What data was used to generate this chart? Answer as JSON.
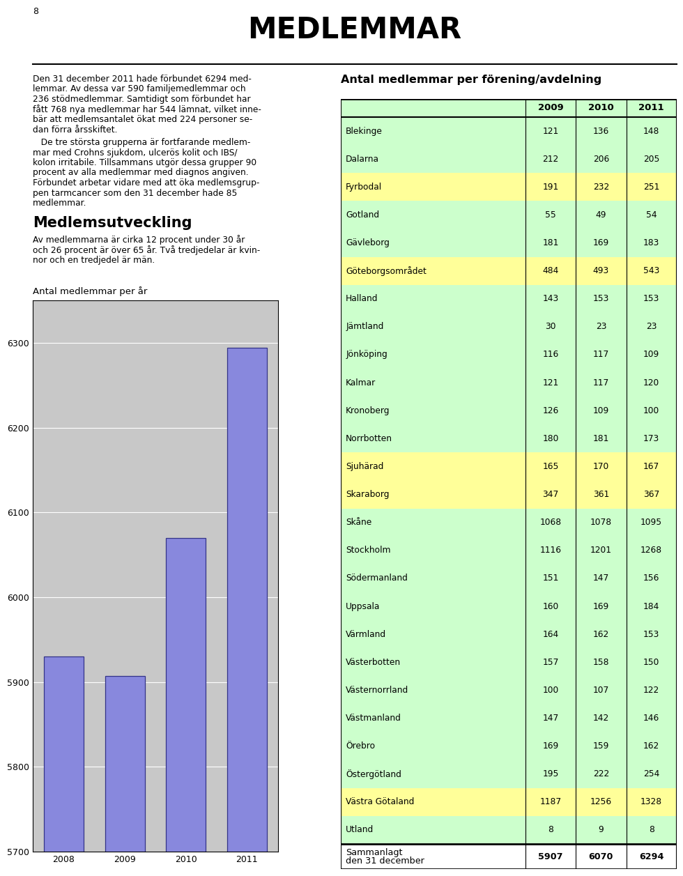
{
  "page_number": "8",
  "main_title": "MEDLEMMAR",
  "para1_lines": [
    "Den 31 december 2011 hade förbundet 6294 med-",
    "lemmar. Av dessa var 590 familjemedlemmar och",
    "236 stödmedlemmar. Samtidigt som förbundet har",
    "fått 768 nya medlemmar har 544 lämnat, vilket inne-",
    "bär att medlemsantalet ökat med 224 personer se-",
    "dan förra årsskiftet."
  ],
  "para2_lines": [
    "   De tre största grupperna är fortfarande medlem-",
    "mar med Crohns sjukdom, ulcerös kolit och IBS/",
    "kolon irritabile. Tillsammans utgör dessa grupper 90",
    "procent av alla medlemmar med diagnos angiven.",
    "Förbundet arbetar vidare med att öka medlemsgrup-",
    "pen tarmcancer som den 31 december hade 85",
    "medlemmar."
  ],
  "section_title": "Medlemsutveckling",
  "section_lines": [
    "Av medlemmarna är cirka 12 procent under 30 år",
    "och 26 procent är över 65 år. Två tredjedelar är kvin-",
    "nor och en tredjedel är män."
  ],
  "bar_chart_title": "Antal medlemmar per år",
  "bar_years": [
    "2008",
    "2009",
    "2010",
    "2011"
  ],
  "bar_values": [
    5930,
    5907,
    6070,
    6294
  ],
  "bar_color": "#8888dd",
  "bar_edge_color": "#333388",
  "bar_chart_bg": "#c8c8c8",
  "bar_ylim": [
    5700,
    6350
  ],
  "bar_yticks": [
    5700,
    5800,
    5900,
    6000,
    6100,
    6200,
    6300
  ],
  "table_title": "Antal medlemmar per förening/avdelning",
  "table_headers": [
    "",
    "2009",
    "2010",
    "2011"
  ],
  "table_rows": [
    [
      "Blekinge",
      "121",
      "136",
      "148"
    ],
    [
      "Dalarna",
      "212",
      "206",
      "205"
    ],
    [
      "Fyrbodal",
      "191",
      "232",
      "251"
    ],
    [
      "Gotland",
      "55",
      "49",
      "54"
    ],
    [
      "Gävleborg",
      "181",
      "169",
      "183"
    ],
    [
      "Göteborgsområdet",
      "484",
      "493",
      "543"
    ],
    [
      "Halland",
      "143",
      "153",
      "153"
    ],
    [
      "Jämtland",
      "30",
      "23",
      "23"
    ],
    [
      "Jönköping",
      "116",
      "117",
      "109"
    ],
    [
      "Kalmar",
      "121",
      "117",
      "120"
    ],
    [
      "Kronoberg",
      "126",
      "109",
      "100"
    ],
    [
      "Norrbotten",
      "180",
      "181",
      "173"
    ],
    [
      "Sjuhärad",
      "165",
      "170",
      "167"
    ],
    [
      "Skaraborg",
      "347",
      "361",
      "367"
    ],
    [
      "Skåne",
      "1068",
      "1078",
      "1095"
    ],
    [
      "Stockholm",
      "1116",
      "1201",
      "1268"
    ],
    [
      "Södermanland",
      "151",
      "147",
      "156"
    ],
    [
      "Uppsala",
      "160",
      "169",
      "184"
    ],
    [
      "Värmland",
      "164",
      "162",
      "153"
    ],
    [
      "Västerbotten",
      "157",
      "158",
      "150"
    ],
    [
      "Västernorrland",
      "100",
      "107",
      "122"
    ],
    [
      "Västmanland",
      "147",
      "142",
      "146"
    ],
    [
      "Örebro",
      "169",
      "159",
      "162"
    ],
    [
      "Östergötland",
      "195",
      "222",
      "254"
    ],
    [
      "Västra Götaland",
      "1187",
      "1256",
      "1328"
    ],
    [
      "Utland",
      "8",
      "9",
      "8"
    ]
  ],
  "table_footer": [
    "Sammanlagt\nden 31 december",
    "5907",
    "6070",
    "6294"
  ],
  "yellow_rows": [
    2,
    5,
    12,
    13,
    24
  ],
  "table_bg_green": "#ccffcc",
  "table_bg_yellow": "#ffff99",
  "table_bg_white": "#ffffff"
}
